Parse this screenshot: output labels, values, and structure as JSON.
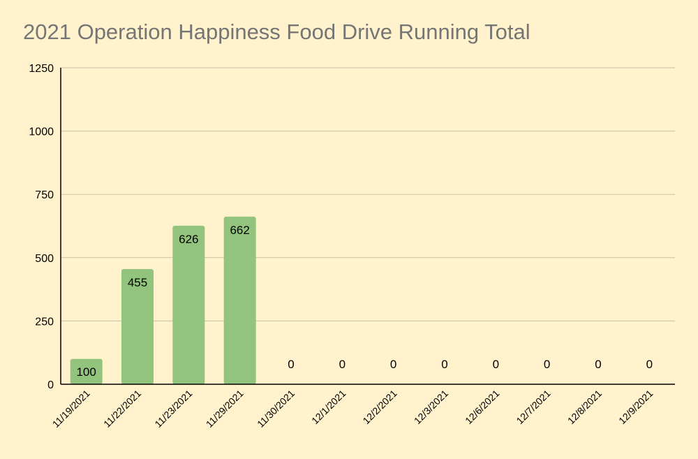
{
  "chart_data": {
    "type": "bar",
    "title": "2021 Operation Happiness Food Drive Running Total",
    "xlabel": "",
    "ylabel": "",
    "categories": [
      "11/19/2021",
      "11/22/2021",
      "11/23/2021",
      "11/29/2021",
      "11/30/2021",
      "12/1/2021",
      "12/2/2021",
      "12/3/2021",
      "12/6/2021",
      "12/7/2021",
      "12/8/2021",
      "12/9/2021"
    ],
    "values": [
      100,
      455,
      626,
      662,
      0,
      0,
      0,
      0,
      0,
      0,
      0,
      0
    ],
    "data_labels": [
      "100",
      "455",
      "626",
      "662",
      "0",
      "0",
      "0",
      "0",
      "0",
      "0",
      "0",
      "0"
    ],
    "ylim": [
      0,
      1250
    ],
    "yticks": [
      "0",
      "250",
      "500",
      "750",
      "1000",
      "1250"
    ],
    "grid": true,
    "legend": "none",
    "colors": {
      "background": "#fff2cc",
      "bar": "#93c47d",
      "grid": "#c8bfa3",
      "axis": "#000000",
      "title": "#757575"
    }
  }
}
